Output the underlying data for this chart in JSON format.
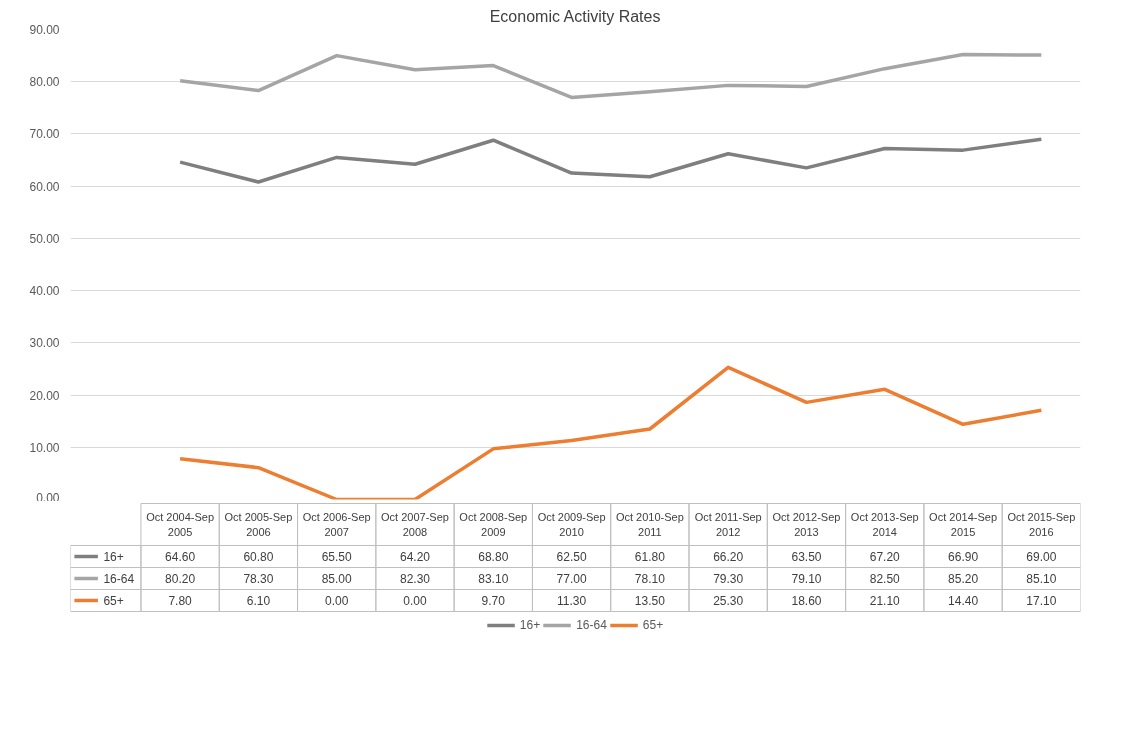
{
  "chart_data": {
    "type": "line",
    "title": "Economic Activity Rates",
    "categories": [
      "Oct 2004-Sep 2005",
      "Oct 2005-Sep 2006",
      "Oct 2006-Sep 2007",
      "Oct 2007-Sep 2008",
      "Oct 2008-Sep 2009",
      "Oct 2009-Sep 2010",
      "Oct 2010-Sep 2011",
      "Oct 2011-Sep 2012",
      "Oct 2012-Sep 2013",
      "Oct 2013-Sep 2014",
      "Oct 2014-Sep 2015",
      "Oct 2015-Sep 2016"
    ],
    "series": [
      {
        "name": "16+",
        "color": "#7f7f7f",
        "values": [
          64.6,
          60.8,
          65.5,
          64.2,
          68.8,
          62.5,
          61.8,
          66.2,
          63.5,
          67.2,
          66.9,
          69.0
        ],
        "value_labels": [
          "64.60",
          "60.80",
          "65.50",
          "64.20",
          "68.80",
          "62.50",
          "61.80",
          "66.20",
          "63.50",
          "67.20",
          "66.90",
          "69.00"
        ]
      },
      {
        "name": "16-64",
        "color": "#a5a5a5",
        "values": [
          80.2,
          78.3,
          85.0,
          82.3,
          83.1,
          77.0,
          78.1,
          79.3,
          79.1,
          82.5,
          85.2,
          85.1
        ],
        "value_labels": [
          "80.20",
          "78.30",
          "85.00",
          "82.30",
          "83.10",
          "77.00",
          "78.10",
          "79.30",
          "79.10",
          "82.50",
          "85.20",
          "85.10"
        ]
      },
      {
        "name": "65+",
        "color": "#ed7d31",
        "values": [
          7.8,
          6.1,
          0.0,
          0.0,
          9.7,
          11.3,
          13.5,
          25.3,
          18.6,
          21.1,
          14.4,
          17.1
        ],
        "value_labels": [
          "7.80",
          "6.10",
          "0.00",
          "0.00",
          "9.70",
          "11.30",
          "13.50",
          "25.30",
          "18.60",
          "21.10",
          "14.40",
          "17.10"
        ]
      }
    ],
    "ylim": [
      0,
      90
    ],
    "yticks": [
      {
        "value": 0,
        "label": "0.00"
      },
      {
        "value": 10,
        "label": "10.00"
      },
      {
        "value": 20,
        "label": "20.00"
      },
      {
        "value": 30,
        "label": "30.00"
      },
      {
        "value": 40,
        "label": "40.00"
      },
      {
        "value": 50,
        "label": "50.00"
      },
      {
        "value": 60,
        "label": "60.00"
      },
      {
        "value": 70,
        "label": "70.00"
      },
      {
        "value": 80,
        "label": "80.00"
      },
      {
        "value": 90,
        "label": "90.00"
      }
    ],
    "grid": "y",
    "legend": "bottom"
  }
}
